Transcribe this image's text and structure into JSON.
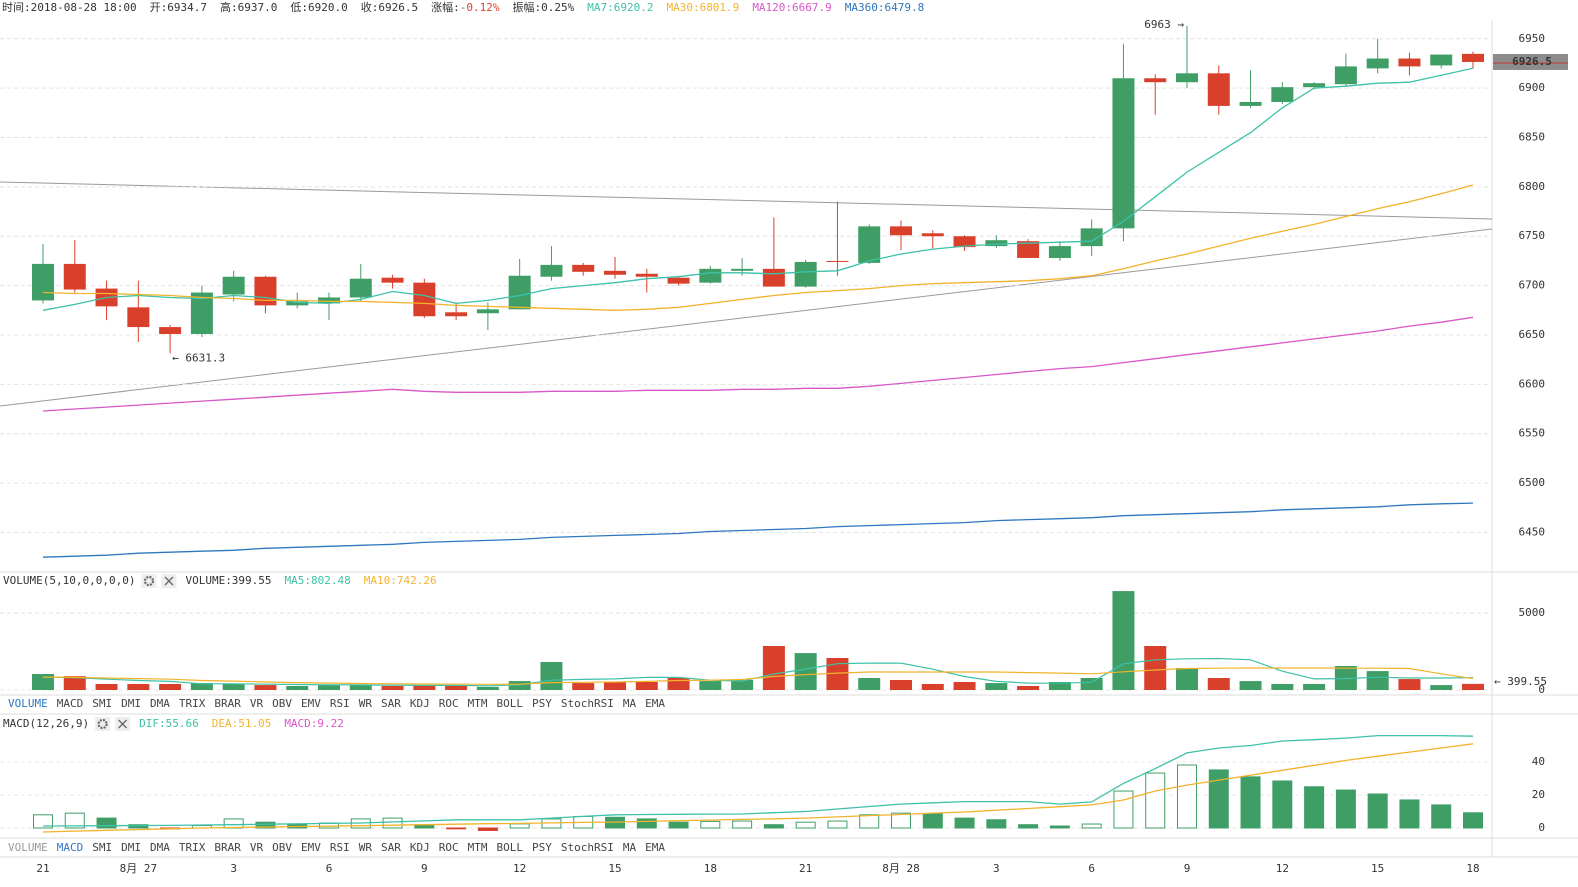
{
  "chart_data": [
    {
      "type": "candlestick",
      "header": [
        {
          "label": "时间:",
          "value": "2018-08-28 18:00"
        },
        {
          "label": "开:",
          "value": "6934.7"
        },
        {
          "label": "高:",
          "value": "6937.0"
        },
        {
          "label": "低:",
          "value": "6920.0"
        },
        {
          "label": "收:",
          "value": "6926.5"
        },
        {
          "label": "涨幅:",
          "value": "-0.12%",
          "color": "#e0412b"
        },
        {
          "label": "振幅:",
          "value": "0.25%"
        }
      ],
      "categories": [
        "21",
        null,
        null,
        "8月 27",
        null,
        null,
        "3",
        null,
        null,
        "6",
        null,
        null,
        "9",
        null,
        null,
        "12",
        null,
        null,
        "15",
        null,
        null,
        "18",
        null,
        null,
        "21",
        null,
        null,
        "8月 28",
        null,
        null,
        "3",
        null,
        null,
        "6",
        null,
        null,
        "9",
        null,
        null,
        "12",
        null,
        null,
        "15",
        null,
        null,
        "18"
      ],
      "open": [
        6685,
        6722,
        6697,
        6678,
        6658,
        6651,
        6691,
        6709,
        6680,
        6682,
        6688,
        6708,
        6703,
        6673,
        6672,
        6676,
        6709,
        6721,
        6715,
        6712,
        6708,
        6703,
        6715,
        6717,
        6699,
        6725,
        6723,
        6760,
        6753,
        6750,
        6740,
        6745,
        6728,
        6740,
        6758,
        6910,
        6906,
        6915,
        6882,
        6886,
        6901,
        6904,
        6920,
        6930,
        6923,
        6934.7
      ],
      "high": [
        6742,
        6746,
        6705,
        6705,
        6660,
        6700,
        6715,
        6710,
        6693,
        6693,
        6722,
        6711,
        6707,
        6683,
        6683,
        6727,
        6740,
        6723,
        6729,
        6717,
        6710,
        6720,
        6728,
        6769,
        6726,
        6785,
        6762,
        6766,
        6756,
        6751,
        6751,
        6747,
        6745,
        6767,
        6945,
        6914,
        6963,
        6923,
        6918,
        6906,
        6906,
        6935,
        6950,
        6936,
        6934,
        6937
      ],
      "low": [
        6682,
        6693,
        6665,
        6643,
        6631.3,
        6648,
        6684,
        6672,
        6677,
        6665,
        6684,
        6697,
        6667,
        6665,
        6655,
        6676,
        6705,
        6710,
        6707,
        6693,
        6700,
        6702,
        6710,
        6699,
        6698,
        6710,
        6722,
        6736,
        6738,
        6735,
        6738,
        6728,
        6725,
        6730,
        6745,
        6873,
        6900,
        6873,
        6880,
        6884,
        6899,
        6902,
        6915,
        6913,
        6920,
        6920
      ],
      "close": [
        6722,
        6696,
        6679,
        6658,
        6651,
        6693,
        6709,
        6680,
        6684,
        6688,
        6707,
        6703,
        6669,
        6669,
        6676,
        6710,
        6721,
        6714,
        6711,
        6709,
        6702,
        6717,
        6717,
        6699,
        6724,
        6724,
        6760,
        6751,
        6750,
        6739,
        6746,
        6728,
        6740,
        6758,
        6910,
        6906,
        6915,
        6882,
        6886,
        6901,
        6905,
        6922,
        6930,
        6922,
        6934,
        6926.5
      ],
      "up_color": "#3f9e66",
      "down_color": "#d9402b",
      "series": [
        {
          "label": "MA7:6920.2",
          "color": "#3dc1a8",
          "values": [
            6675,
            6681,
            6688,
            6690,
            6688,
            6687,
            6690,
            6688,
            6683,
            6682,
            6686,
            6694,
            6690,
            6682,
            6685,
            6690,
            6697,
            6700,
            6703,
            6707,
            6709,
            6713,
            6713,
            6712,
            6714,
            6715,
            6725,
            6732,
            6737,
            6740,
            6742,
            6743,
            6744,
            6745,
            6765,
            6790,
            6815,
            6835,
            6855,
            6880,
            6900,
            6902,
            6905,
            6906,
            6913,
            6920.2
          ]
        },
        {
          "label": "MA30:6801.9",
          "color": "#f2b32c",
          "values": [
            6693,
            6692,
            6692,
            6691,
            6690,
            6688,
            6687,
            6685,
            6685,
            6684,
            6684,
            6683,
            6682,
            6680,
            6679,
            6678,
            6677,
            6676,
            6675,
            6676,
            6678,
            6682,
            6686,
            6690,
            6693,
            6695,
            6697,
            6700,
            6702,
            6703,
            6704,
            6705,
            6707,
            6710,
            6717,
            6725,
            6732,
            6740,
            6748,
            6755,
            6762,
            6770,
            6778,
            6785,
            6793,
            6801.9
          ]
        },
        {
          "label": "MA120:6667.9",
          "color": "#d957c8",
          "values": [
            6573,
            6575,
            6577,
            6579,
            6581,
            6583,
            6585,
            6587,
            6589,
            6591,
            6593,
            6595,
            6593,
            6592,
            6592,
            6592,
            6593,
            6593,
            6593,
            6594,
            6594,
            6594,
            6595,
            6595,
            6596,
            6596,
            6598,
            6601,
            6604,
            6607,
            6610,
            6613,
            6616,
            6618,
            6622,
            6626,
            6630,
            6634,
            6638,
            6642,
            6646,
            6650,
            6654,
            6659,
            6663,
            6667.9
          ]
        },
        {
          "label": "MA360:6479.8",
          "color": "#2f77c0",
          "values": [
            6425,
            6426,
            6427,
            6429,
            6430,
            6431,
            6432,
            6434,
            6435,
            6436,
            6437,
            6438,
            6440,
            6441,
            6442,
            6443,
            6445,
            6446,
            6447,
            6448,
            6449,
            6451,
            6452,
            6453,
            6454,
            6456,
            6457,
            6458,
            6459,
            6460,
            6462,
            6463,
            6464,
            6465,
            6467,
            6468,
            6469,
            6470,
            6471,
            6473,
            6474,
            6475,
            6476,
            6478,
            6479,
            6479.8
          ]
        }
      ],
      "annotations": [
        "6963 →",
        "← 6631.3"
      ],
      "ylim": [
        6412,
        6969
      ],
      "yticks": [
        6450,
        6500,
        6550,
        6600,
        6650,
        6700,
        6750,
        6800,
        6850,
        6900,
        6950
      ],
      "grid": true
    },
    {
      "type": "bar",
      "title": "VOLUME(5,10,0,0,0,0)",
      "current": "VOLUME:399.55",
      "values": [
        1040,
        900,
        390,
        390,
        390,
        450,
        390,
        320,
        260,
        320,
        320,
        260,
        320,
        260,
        200,
        580,
        1820,
        450,
        520,
        520,
        780,
        580,
        650,
        2860,
        2400,
        2080,
        780,
        650,
        390,
        520,
        450,
        260,
        520,
        780,
        6430,
        2860,
        1430,
        780,
        580,
        390,
        390,
        1560,
        1230,
        710,
        320,
        399.55
      ],
      "value_labels": [
        null,
        null,
        null,
        null,
        null,
        null,
        null,
        null,
        null,
        null,
        null,
        null,
        null,
        null,
        null,
        null,
        null,
        null,
        null,
        null,
        null,
        null,
        null,
        null,
        null,
        null,
        null,
        null,
        null,
        null,
        null,
        null,
        null,
        null,
        null,
        null,
        null,
        null,
        null,
        null,
        null,
        null,
        null,
        null,
        null,
        "← 399.55"
      ],
      "series": [
        {
          "label": "MA5:802.48",
          "color": "#3dc1a8",
          "values": [
            840,
            800,
            700,
            620,
            560,
            400,
            400,
            380,
            360,
            340,
            330,
            310,
            300,
            300,
            270,
            330,
            640,
            690,
            720,
            820,
            820,
            640,
            580,
            1040,
            1360,
            1710,
            1750,
            1750,
            1350,
            880,
            560,
            450,
            440,
            500,
            1700,
            1960,
            2030,
            2050,
            1960,
            1220,
            720,
            740,
            830,
            780,
            780,
            802.48
          ]
        },
        {
          "label": "MA10:742.26",
          "color": "#f2b32c",
          "values": [
            840,
            820,
            780,
            740,
            700,
            620,
            580,
            520,
            480,
            450,
            420,
            400,
            390,
            380,
            370,
            380,
            480,
            500,
            520,
            560,
            620,
            640,
            680,
            880,
            1000,
            1100,
            1170,
            1170,
            1170,
            1170,
            1170,
            1130,
            1100,
            1050,
            1180,
            1300,
            1400,
            1420,
            1430,
            1430,
            1430,
            1420,
            1420,
            1400,
            1050,
            742.26
          ]
        }
      ],
      "ylim": [
        0,
        6500
      ],
      "yticks": [
        0,
        5000
      ],
      "grid": true,
      "selected_tab": 0
    },
    {
      "type": "macd",
      "title": "MACD(12,26,9)",
      "current": "MACD:9.22",
      "current_color": "#d957c8",
      "values": [
        8,
        9,
        6,
        2,
        -0.5,
        1.5,
        5.5,
        3.5,
        2.5,
        3,
        5.5,
        6,
        2,
        -0.5,
        -1.5,
        2.5,
        5.5,
        7,
        6.5,
        5.5,
        3.5,
        4,
        4.2,
        2,
        3.5,
        4.2,
        8,
        9,
        8.5,
        6,
        5,
        2,
        1.2,
        2.4,
        22.4,
        33.3,
        38.2,
        35.2,
        31,
        28.5,
        25,
        23,
        20.6,
        17,
        14,
        9.22
      ],
      "series": [
        {
          "label": "DIF:55.66",
          "color": "#3dc1a8",
          "values": [
            1.2,
            1.3,
            1.4,
            1.5,
            1.6,
            1.8,
            2,
            2.3,
            2.5,
            2.8,
            3,
            3.7,
            4.3,
            5,
            5,
            5,
            6,
            7,
            8,
            8.2,
            8.3,
            8.4,
            8.5,
            9.3,
            10,
            11.5,
            13,
            14.5,
            15.3,
            16,
            16,
            16,
            14.5,
            15.8,
            27,
            36,
            45.5,
            48.5,
            50,
            52.7,
            53.5,
            54.5,
            56,
            56,
            56,
            55.66
          ]
        },
        {
          "label": "DEA:51.05",
          "color": "#f2b32c",
          "values": [
            -2.4,
            -1.9,
            -1.4,
            -1,
            -0.5,
            0,
            0.3,
            0.6,
            0.9,
            1.1,
            1.4,
            1.7,
            2,
            2.3,
            2.6,
            2.8,
            3.1,
            3.4,
            3.6,
            4,
            4.4,
            4.8,
            5.2,
            5.6,
            6,
            6.7,
            7.5,
            8.2,
            9,
            9.7,
            10.8,
            11.8,
            12.9,
            14,
            17,
            22.4,
            26,
            29,
            32,
            35,
            38,
            41,
            43.5,
            46,
            48.5,
            51.05
          ]
        }
      ],
      "ylim": [
        -6,
        55
      ],
      "yticks": [
        0,
        20,
        40
      ],
      "grid": true,
      "selected_tab": 1
    }
  ],
  "indicator_tabs": [
    "VOLUME",
    "MACD",
    "SMI",
    "DMI",
    "DMA",
    "TRIX",
    "BRAR",
    "VR",
    "OBV",
    "EMV",
    "RSI",
    "WR",
    "SAR",
    "KDJ",
    "ROC",
    "MTM",
    "BOLL",
    "PSY",
    "StochRSI",
    "MA",
    "EMA"
  ]
}
